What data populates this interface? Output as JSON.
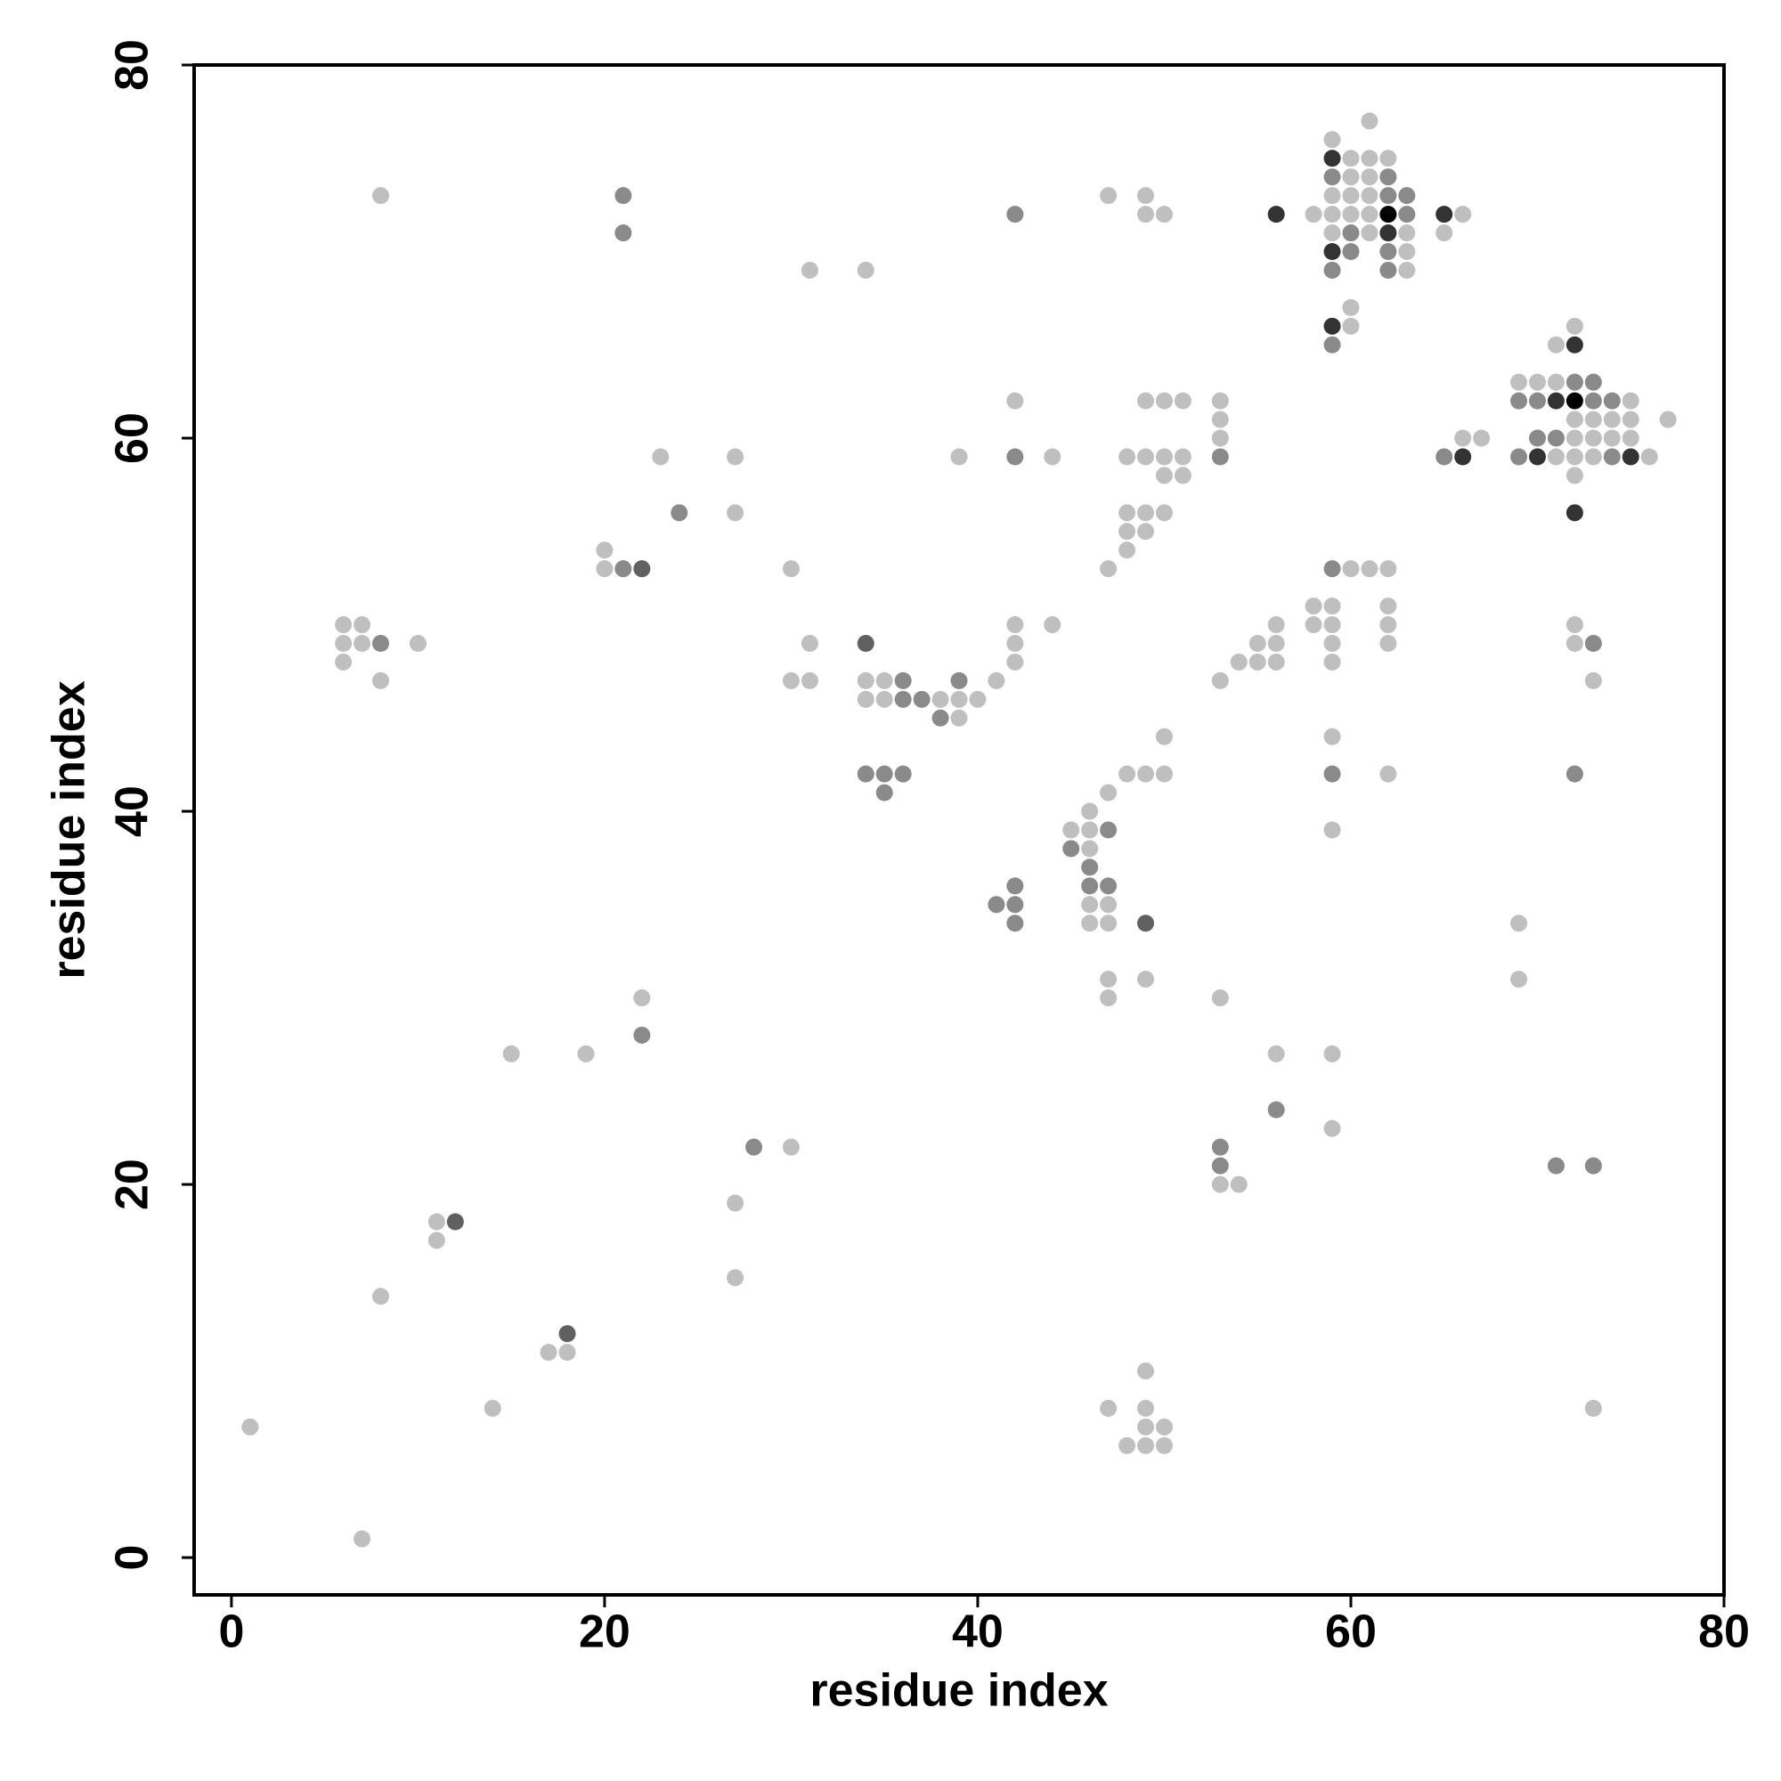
{
  "chart_data": {
    "type": "scatter",
    "xlabel": "residue index",
    "ylabel": "residue index",
    "xlim": [
      -2,
      80
    ],
    "ylim": [
      -2,
      80
    ],
    "xticks": [
      0,
      20,
      40,
      60,
      80
    ],
    "yticks": [
      0,
      20,
      40,
      60,
      80
    ],
    "series": [
      {
        "color": "#bfbfbf",
        "x": [
          61,
          59,
          60,
          61,
          62,
          60,
          61,
          8,
          47,
          49,
          59,
          60,
          61,
          49,
          50,
          58,
          59,
          60,
          61,
          66,
          59,
          61,
          63,
          65,
          63,
          31,
          34,
          63,
          60,
          60,
          72,
          71,
          69,
          70,
          71,
          42,
          49,
          50,
          51,
          53,
          75,
          53,
          72,
          73,
          74,
          75,
          77,
          53,
          66,
          67,
          72,
          73,
          74,
          75,
          23,
          27,
          39,
          44,
          48,
          49,
          50,
          51,
          71,
          72,
          73,
          76,
          50,
          51,
          72,
          27,
          48,
          49,
          50,
          48,
          49,
          20,
          48,
          20,
          30,
          47,
          60,
          61,
          62,
          58,
          59,
          62,
          6,
          7,
          42,
          44,
          56,
          58,
          59,
          62,
          72,
          6,
          7,
          10,
          31,
          42,
          55,
          56,
          59,
          62,
          72,
          6,
          42,
          54,
          55,
          56,
          59,
          8,
          30,
          31,
          34,
          35,
          41,
          53,
          73,
          34,
          35,
          38,
          39,
          40,
          39,
          50,
          59,
          48,
          49,
          50,
          62,
          47,
          46,
          45,
          46,
          59,
          46,
          46,
          47,
          46,
          47,
          69,
          47,
          49,
          69,
          22,
          47,
          53,
          15,
          19,
          56,
          59,
          59,
          30,
          53,
          54,
          27,
          11,
          11,
          27,
          8,
          17,
          18,
          49,
          14,
          47,
          49,
          73,
          1,
          49,
          50,
          48,
          49,
          50,
          7
        ],
        "values": [
          77,
          76,
          75,
          75,
          75,
          74,
          74,
          73,
          73,
          73,
          73,
          73,
          73,
          72,
          72,
          72,
          72,
          72,
          72,
          72,
          71,
          71,
          71,
          71,
          70,
          69,
          69,
          69,
          67,
          66,
          66,
          65,
          63,
          63,
          63,
          62,
          62,
          62,
          62,
          62,
          62,
          61,
          61,
          61,
          61,
          61,
          61,
          60,
          60,
          60,
          60,
          60,
          60,
          60,
          59,
          59,
          59,
          59,
          59,
          59,
          59,
          59,
          59,
          59,
          59,
          59,
          58,
          58,
          58,
          56,
          56,
          56,
          56,
          55,
          55,
          54,
          54,
          53,
          53,
          53,
          53,
          53,
          53,
          51,
          51,
          51,
          50,
          50,
          50,
          50,
          50,
          50,
          50,
          50,
          50,
          49,
          49,
          49,
          49,
          49,
          49,
          49,
          49,
          49,
          49,
          48,
          48,
          48,
          48,
          48,
          48,
          47,
          47,
          47,
          47,
          47,
          47,
          47,
          47,
          46,
          46,
          46,
          46,
          46,
          45,
          44,
          44,
          42,
          42,
          42,
          42,
          41,
          40,
          39,
          39,
          39,
          38,
          35,
          35,
          34,
          34,
          34,
          31,
          31,
          31,
          30,
          30,
          30,
          27,
          27,
          27,
          27,
          23,
          22,
          20,
          20,
          19,
          18,
          17,
          15,
          14,
          11,
          11,
          10,
          8,
          8,
          8,
          8,
          7,
          7,
          7,
          6,
          6,
          6,
          1
        ]
      },
      {
        "color": "#8a8a8a",
        "x": [
          59,
          62,
          21,
          62,
          63,
          42,
          63,
          21,
          60,
          60,
          62,
          59,
          62,
          59,
          72,
          73,
          69,
          70,
          73,
          74,
          70,
          71,
          42,
          53,
          65,
          69,
          74,
          24,
          21,
          59,
          8,
          73,
          36,
          39,
          36,
          37,
          38,
          34,
          35,
          36,
          59,
          72,
          35,
          47,
          45,
          46,
          42,
          46,
          47,
          41,
          42,
          42,
          22,
          56,
          28,
          53,
          53,
          71,
          73
        ],
        "values": [
          74,
          74,
          73,
          73,
          73,
          72,
          72,
          71,
          71,
          70,
          70,
          69,
          69,
          65,
          63,
          63,
          62,
          62,
          62,
          62,
          60,
          60,
          59,
          59,
          59,
          59,
          59,
          56,
          53,
          53,
          49,
          49,
          47,
          47,
          46,
          46,
          45,
          42,
          42,
          42,
          42,
          42,
          41,
          39,
          38,
          37,
          36,
          36,
          36,
          35,
          35,
          34,
          28,
          24,
          22,
          22,
          21,
          21,
          21
        ]
      },
      {
        "color": "#606060",
        "x": [
          34,
          22,
          49,
          12,
          18
        ],
        "values": [
          49,
          53,
          34,
          18,
          12
        ]
      },
      {
        "color": "#333333",
        "x": [
          59,
          56,
          65,
          62,
          59,
          59,
          72,
          71,
          66,
          70,
          75,
          72
        ],
        "values": [
          75,
          72,
          72,
          71,
          70,
          66,
          65,
          62,
          59,
          59,
          59,
          56
        ]
      },
      {
        "color": "#000000",
        "x": [
          62,
          72
        ],
        "values": [
          72,
          62
        ]
      }
    ]
  }
}
